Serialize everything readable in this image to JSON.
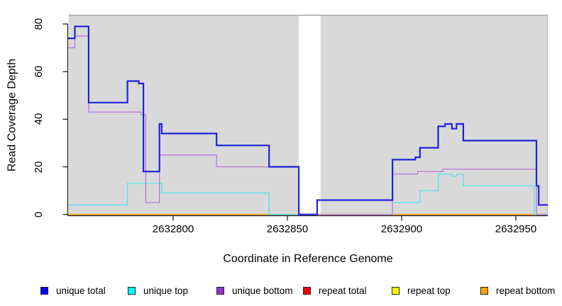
{
  "chart_data": {
    "type": "line",
    "subtype": "step-coverage",
    "title": "",
    "xlabel": "Coordinate in Reference Genome",
    "ylabel": "Read Coverage Depth",
    "xlim": [
      2632754,
      2632964
    ],
    "ylim": [
      0,
      80
    ],
    "x_ticks": [
      2632800,
      2632850,
      2632900,
      2632950
    ],
    "x_tick_labels": [
      "2632800",
      "2632850",
      "2632900",
      "2632950"
    ],
    "y_ticks": [
      0,
      20,
      40,
      60,
      80
    ],
    "y_tick_labels": [
      "0",
      "20",
      "40",
      "60",
      "80"
    ],
    "grid": false,
    "plot_background": "#d9d9d9",
    "masked_region": [
      2632855,
      2632864.5
    ],
    "series": [
      {
        "name": "repeat total",
        "color": "#ee1111",
        "width": 1.2,
        "points": [
          [
            2632754,
            0
          ]
        ],
        "x_end": 2632964
      },
      {
        "name": "repeat top",
        "color": "#ffff00",
        "width": 1.2,
        "points": [
          [
            2632754,
            0
          ]
        ],
        "x_end": 2632964
      },
      {
        "name": "repeat bottom",
        "color": "#ffa518",
        "width": 1.7,
        "points": [
          [
            2632754,
            0
          ]
        ],
        "x_end": 2632964
      },
      {
        "name": "unique top",
        "color": "#55e2ec",
        "width": 1.3,
        "points": [
          [
            2632754,
            4
          ],
          [
            2632780,
            13
          ],
          [
            2632795,
            9
          ],
          [
            2632842,
            0
          ],
          [
            2632863,
            6
          ],
          [
            2632896,
            5
          ],
          [
            2632908,
            10
          ],
          [
            2632916,
            17
          ],
          [
            2632922,
            16
          ],
          [
            2632924,
            17
          ],
          [
            2632927,
            12
          ],
          [
            2632958,
            0
          ]
        ],
        "x_end": 2632964
      },
      {
        "name": "unique bottom",
        "color": "#b579de",
        "width": 1.3,
        "points": [
          [
            2632754,
            70
          ],
          [
            2632757,
            75
          ],
          [
            2632763,
            43
          ],
          [
            2632786,
            42
          ],
          [
            2632788,
            5
          ],
          [
            2632794,
            25
          ],
          [
            2632819,
            20
          ],
          [
            2632855,
            0
          ],
          [
            2632896,
            17
          ],
          [
            2632907,
            18
          ],
          [
            2632918,
            19
          ],
          [
            2632959,
            0
          ]
        ],
        "x_end": 2632964
      },
      {
        "name": "unique total",
        "color": "#2222dd",
        "width": 2.2,
        "points": [
          [
            2632754,
            74
          ],
          [
            2632757,
            79
          ],
          [
            2632763,
            47
          ],
          [
            2632780,
            56
          ],
          [
            2632785,
            55
          ],
          [
            2632787,
            18
          ],
          [
            2632794,
            38
          ],
          [
            2632795,
            34
          ],
          [
            2632819,
            29
          ],
          [
            2632842,
            20
          ],
          [
            2632855,
            0
          ],
          [
            2632863,
            6
          ],
          [
            2632896,
            23
          ],
          [
            2632906,
            24
          ],
          [
            2632908,
            28
          ],
          [
            2632916,
            37
          ],
          [
            2632919,
            38
          ],
          [
            2632922,
            36
          ],
          [
            2632924,
            38
          ],
          [
            2632927,
            31
          ],
          [
            2632959,
            12
          ],
          [
            2632960,
            4
          ]
        ],
        "x_end": 2632964
      }
    ],
    "legend": {
      "position": "bottom",
      "entries": [
        {
          "label": "unique total",
          "color": "#0000ee"
        },
        {
          "label": "unique top",
          "color": "#00ffff"
        },
        {
          "label": "unique bottom",
          "color": "#9933cc"
        },
        {
          "label": "repeat total",
          "color": "#ee0000"
        },
        {
          "label": "repeat top",
          "color": "#ffff00"
        },
        {
          "label": "repeat bottom",
          "color": "#ffa500"
        }
      ]
    }
  }
}
